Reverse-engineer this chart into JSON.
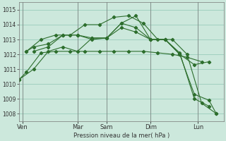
{
  "background_color": "#cce8dc",
  "grid_color": "#99ccbb",
  "line_color": "#2d6e2d",
  "xlabel": "Pression niveau de la mer( hPa )",
  "ylim": [
    1007.5,
    1015.5
  ],
  "yticks": [
    1008,
    1009,
    1010,
    1011,
    1012,
    1013,
    1014,
    1015
  ],
  "xlim": [
    0,
    28
  ],
  "day_labels": [
    "Ven",
    "Mar",
    "Sam",
    "Dim",
    "Lun"
  ],
  "day_positions": [
    0.5,
    8,
    12,
    18,
    24.5
  ],
  "vline_positions": [
    0.5,
    8,
    12,
    18,
    24.5
  ],
  "series1_x": [
    0,
    1,
    3,
    5,
    7,
    9,
    11,
    13,
    15,
    17,
    19,
    21,
    23,
    25
  ],
  "series1_y": [
    1010.3,
    1010.8,
    1012.1,
    1012.2,
    1012.2,
    1012.2,
    1012.2,
    1012.2,
    1012.2,
    1012.2,
    1012.1,
    1012.0,
    1011.8,
    1011.5
  ],
  "series2_x": [
    1,
    2,
    4,
    6,
    8,
    10,
    12,
    14,
    16,
    18,
    20,
    22,
    24,
    26
  ],
  "series2_y": [
    1012.2,
    1012.5,
    1012.7,
    1013.3,
    1013.3,
    1013.0,
    1013.1,
    1013.8,
    1013.5,
    1013.0,
    1013.0,
    1012.1,
    1009.0,
    1008.5
  ],
  "series3_x": [
    1,
    3,
    5,
    7,
    9,
    11,
    13,
    15,
    17,
    19,
    21,
    23,
    25,
    27
  ],
  "series3_y": [
    1012.2,
    1013.0,
    1013.3,
    1013.3,
    1014.0,
    1014.0,
    1014.5,
    1014.6,
    1014.1,
    1013.0,
    1013.0,
    1012.0,
    1008.7,
    1008.0
  ],
  "series4_x": [
    0,
    2,
    4,
    6,
    8,
    10,
    12,
    14,
    16,
    18,
    20,
    22,
    24,
    26
  ],
  "series4_y": [
    1010.3,
    1011.0,
    1012.2,
    1012.5,
    1012.2,
    1013.1,
    1013.1,
    1014.1,
    1013.8,
    1013.0,
    1013.0,
    1012.0,
    1011.3,
    1011.5
  ],
  "series5_x": [
    2,
    4,
    6,
    8,
    10,
    12,
    14,
    16,
    18,
    20,
    22,
    24,
    26,
    27
  ],
  "series5_y": [
    1012.2,
    1012.5,
    1013.3,
    1013.3,
    1013.1,
    1013.1,
    1014.1,
    1014.6,
    1013.0,
    1013.0,
    1012.0,
    1009.3,
    1008.9,
    1008.0
  ]
}
